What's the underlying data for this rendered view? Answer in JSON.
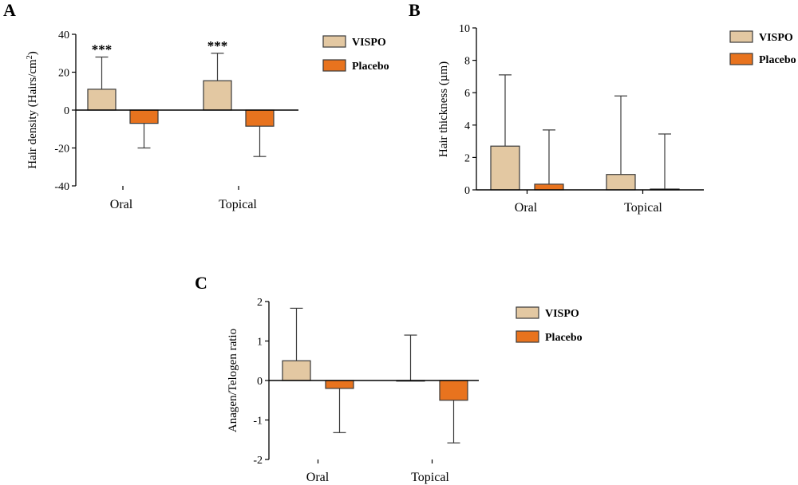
{
  "colors": {
    "vispo": "#E3C8A2",
    "placebo": "#E8731E",
    "stroke": "#3a3a3a"
  },
  "chart_data": [
    {
      "panel": "A",
      "type": "bar",
      "ylabel": "Hair density (Hairs/cm",
      "ylabel_sup": "2",
      "ylabel_close": ")",
      "ylim": [
        -40,
        40
      ],
      "yticks": [
        -40,
        -20,
        0,
        20,
        40
      ],
      "categories": [
        "Oral",
        "Topical"
      ],
      "series": [
        {
          "name": "VISPO",
          "values": [
            11,
            15.5
          ],
          "err_up": [
            17,
            14.5
          ],
          "err_down": [
            0,
            0
          ]
        },
        {
          "name": "Placebo",
          "values": [
            -7,
            -8.5
          ],
          "err_up": [
            0,
            0
          ],
          "err_down": [
            13,
            16
          ]
        }
      ],
      "annotations": [
        "***",
        "***"
      ],
      "legend": [
        "VISPO",
        "Placebo"
      ]
    },
    {
      "panel": "B",
      "type": "bar",
      "ylabel": "Hair thickness (µm)",
      "ylim": [
        0,
        10
      ],
      "yticks": [
        0,
        2,
        4,
        6,
        8,
        10
      ],
      "categories": [
        "Oral",
        "Topical"
      ],
      "series": [
        {
          "name": "VISPO",
          "values": [
            2.7,
            0.95
          ],
          "err_up": [
            4.4,
            4.85
          ],
          "err_down": [
            0,
            0
          ]
        },
        {
          "name": "Placebo",
          "values": [
            0.35,
            0.05
          ],
          "err_up": [
            3.35,
            3.4
          ],
          "err_down": [
            0,
            0
          ]
        }
      ],
      "legend": [
        "VISPO",
        "Placebo"
      ]
    },
    {
      "panel": "C",
      "type": "bar",
      "ylabel": "Anagen/Telogen ratio",
      "ylim": [
        -2,
        2
      ],
      "yticks": [
        -2,
        -1,
        0,
        1,
        2
      ],
      "categories": [
        "Oral",
        "Topical"
      ],
      "series": [
        {
          "name": "VISPO",
          "values": [
            0.5,
            0.0
          ],
          "err_up": [
            1.33,
            1.15
          ],
          "err_down": [
            0,
            0
          ]
        },
        {
          "name": "Placebo",
          "values": [
            -0.2,
            -0.5
          ],
          "err_up": [
            0,
            0
          ],
          "err_down": [
            1.12,
            1.08
          ]
        }
      ],
      "legend": [
        "VISPO",
        "Placebo"
      ]
    }
  ]
}
